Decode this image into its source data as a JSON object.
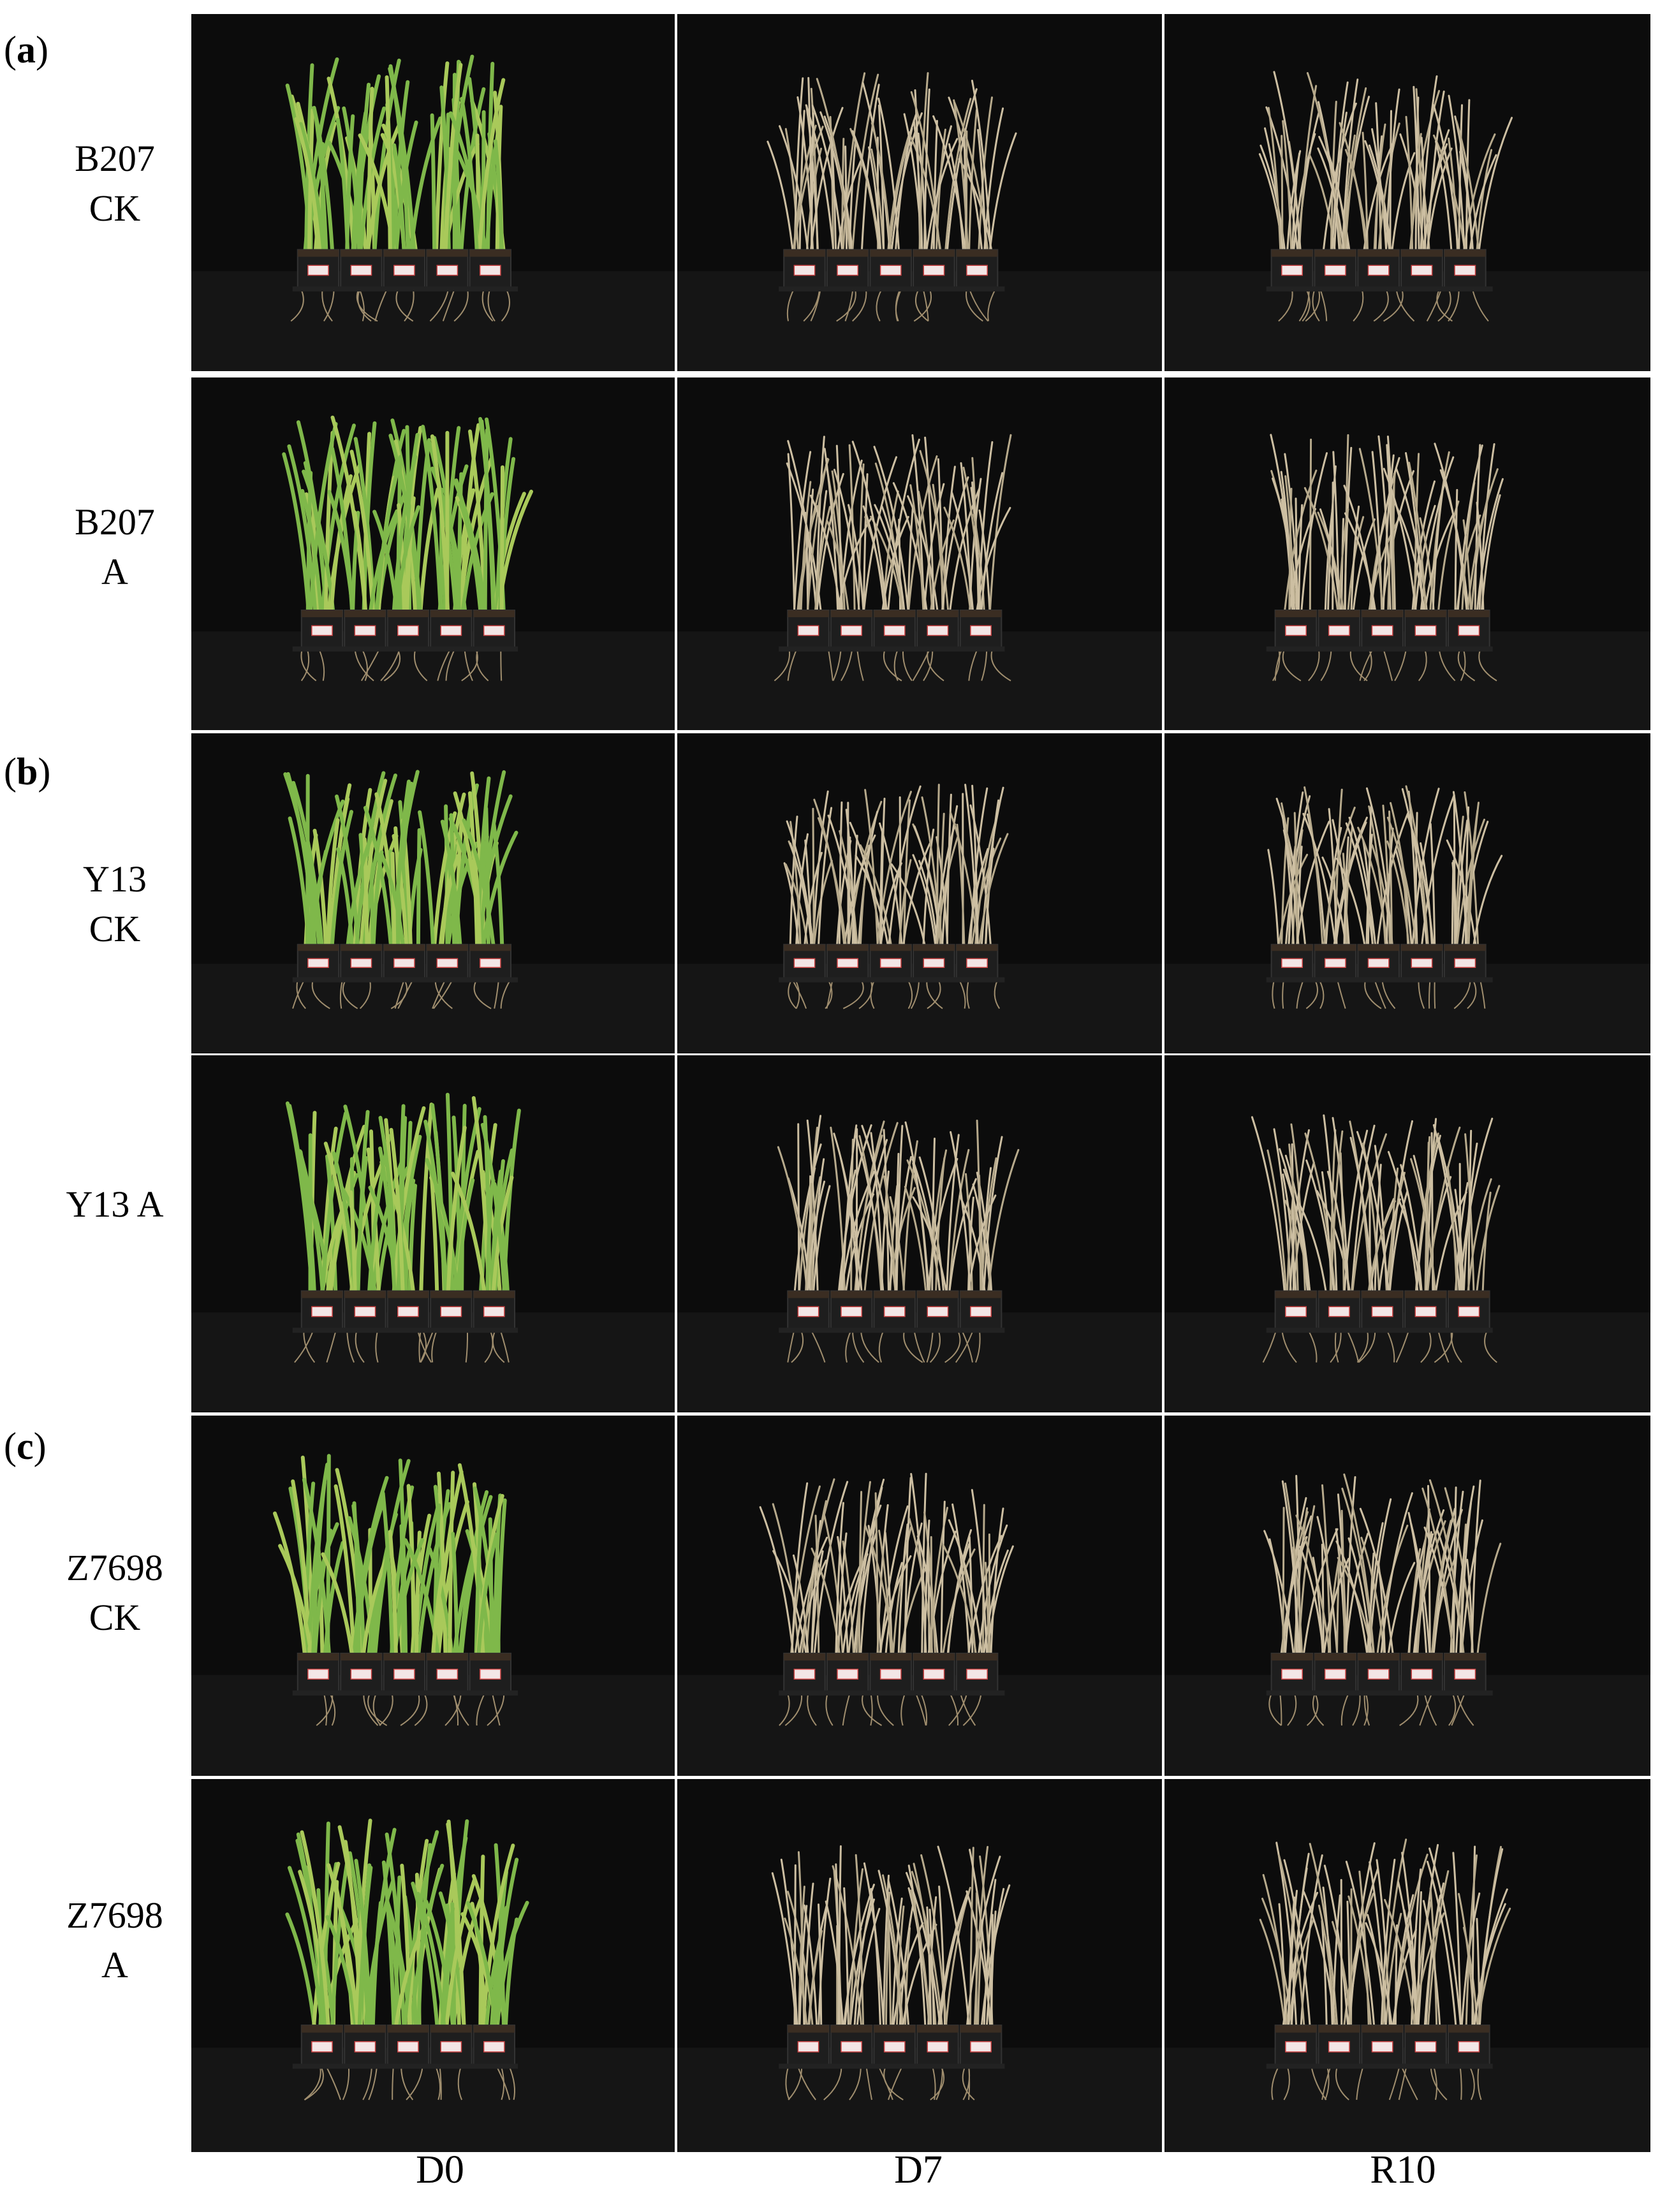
{
  "panels": [
    {
      "letter": "a",
      "open": "(",
      "close": ")"
    },
    {
      "letter": "b",
      "open": "(",
      "close": ")"
    },
    {
      "letter": "c",
      "open": "(",
      "close": ")"
    }
  ],
  "rows": [
    {
      "line1": "B207",
      "line2": "CK"
    },
    {
      "line1": "B207",
      "line2": "A"
    },
    {
      "line1": "Y13",
      "line2": "CK"
    },
    {
      "line1": "Y13 A",
      "line2": ""
    },
    {
      "line1": "Z7698",
      "line2": "CK"
    },
    {
      "line1": "Z7698",
      "line2": "A"
    }
  ],
  "columns": [
    "D0",
    "D7",
    "R10"
  ],
  "photo_colors": {
    "background": "#0c0c0c",
    "healthy_leaf": "#7fb84a",
    "wilted_leaf": "#cdbfa2",
    "pot": "#1e1e1e",
    "label": "#f3e6e6"
  }
}
